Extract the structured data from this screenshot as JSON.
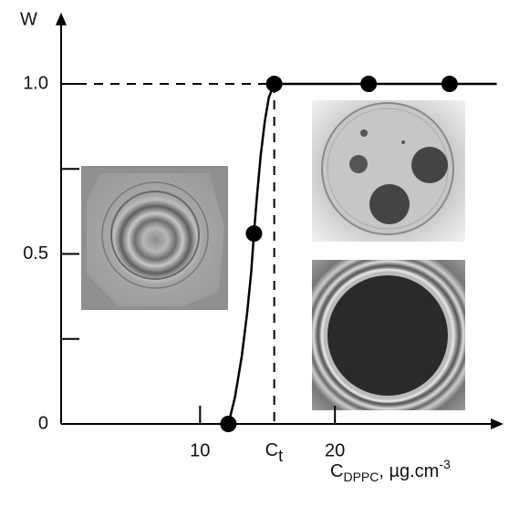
{
  "chart_data": {
    "type": "scatter",
    "y_label": "W",
    "x_label": {
      "main": "C",
      "sub": "DPPC",
      "rest": ", µg.cm",
      "sup": "-3"
    },
    "xlim": [
      -0.3,
      32.5
    ],
    "ylim": [
      0,
      1.21
    ],
    "xticks": [
      10,
      20
    ],
    "yticks": [
      0,
      {
        "value": 0.5,
        "label": "0.5"
      },
      {
        "value": 1.0,
        "label": "1.0"
      }
    ],
    "yminor_ticks": [
      0.25,
      0.75
    ],
    "threshold": {
      "x": 15.5,
      "y": 1.0,
      "label": {
        "main": "C",
        "sub": "t"
      }
    },
    "points": {
      "color": "#000000",
      "x": [
        12.1,
        14.0,
        15.5,
        22.5,
        28.5
      ],
      "values": [
        0,
        0.56,
        1.0,
        1.0,
        1.0
      ]
    },
    "fit": {
      "color": "#000000",
      "x": [
        12.1,
        12.6,
        13.1,
        13.5,
        13.8,
        14.0,
        14.2,
        14.5,
        14.8,
        15.1,
        15.5,
        32.0
      ],
      "values": [
        0,
        0.08,
        0.2,
        0.33,
        0.45,
        0.56,
        0.66,
        0.79,
        0.89,
        0.96,
        1.0,
        1.0
      ]
    }
  }
}
